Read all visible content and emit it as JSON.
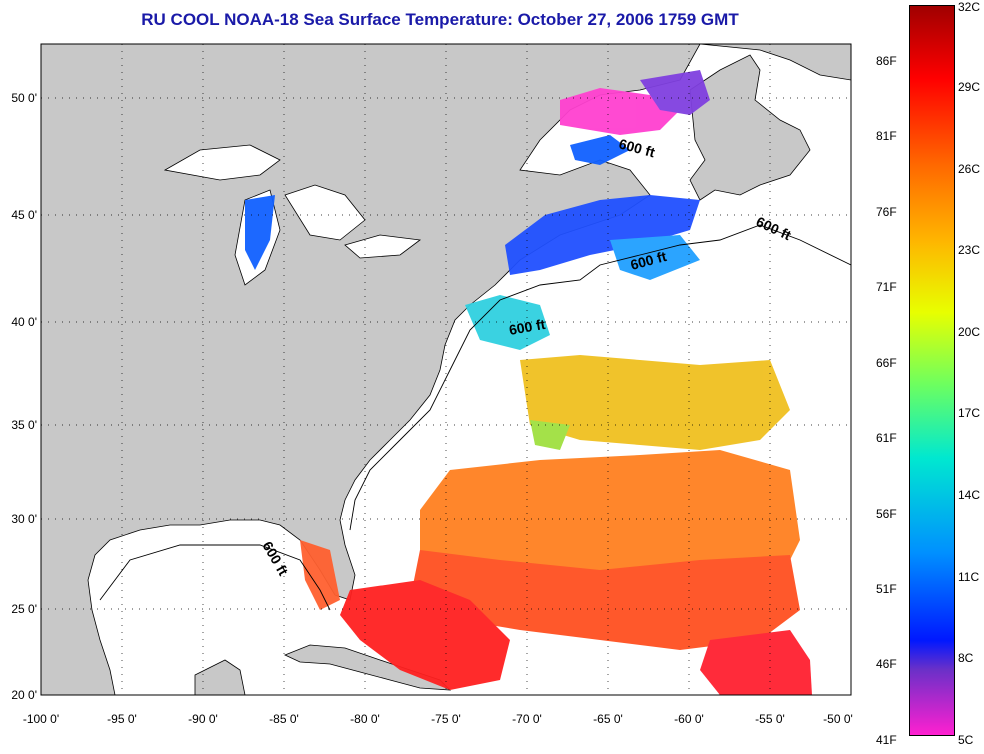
{
  "title": "RU COOL  NOAA-18  Sea Surface Temperature:  October 27, 2006 1759 GMT",
  "map": {
    "x_ticks": [
      "-100 0'",
      "-95 0'",
      "-90 0'",
      "-85 0'",
      "-80 0'",
      "-75 0'",
      "-70 0'",
      "-65 0'",
      "-60 0'",
      "-55 0'",
      "-50 0'"
    ],
    "y_ticks": [
      "50 0'",
      "45 0'",
      "40 0'",
      "35 0'",
      "30 0'",
      "25 0'",
      "20 0'"
    ],
    "contour_label": "600 ft",
    "colors": {
      "land": "#c8c8c8",
      "ocean": "#ffffff",
      "title": "#1a1aa8"
    }
  },
  "colorbar": {
    "fahrenheit_labels": [
      "86F",
      "81F",
      "76F",
      "71F",
      "66F",
      "61F",
      "56F",
      "51F",
      "46F",
      "41F"
    ],
    "celsius_labels": [
      "32C",
      "29C",
      "26C",
      "23C",
      "20C",
      "17C",
      "14C",
      "11C",
      "8C",
      "5C"
    ],
    "gradient_stops": [
      "#a00000",
      "#ff0000",
      "#ff6a00",
      "#ffb400",
      "#e8ff00",
      "#6cff60",
      "#00e8d0",
      "#0090ff",
      "#0018ff",
      "#6a30c8",
      "#ff20d0"
    ]
  }
}
